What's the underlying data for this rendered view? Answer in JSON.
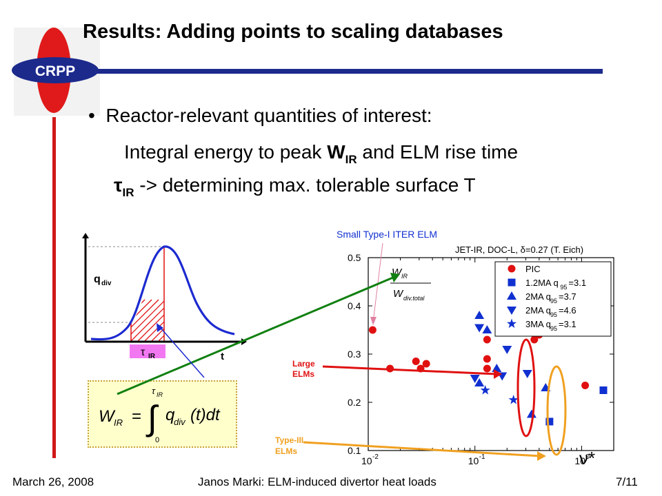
{
  "slide": {
    "title": "Results: Adding points to scaling databases",
    "logo_text": "CRPP",
    "bullet": "Reactor-relevant quantities of interest:",
    "line2_pre": "Integral energy to peak ",
    "line2_bold": "W",
    "line2_sub": "IR",
    "line2_post": " and ELM rise time",
    "line3_tau": "τ",
    "line3_sub": "IR",
    "line3_post": " -> determining max. tolerable surface T"
  },
  "sketch": {
    "ylabel": "q",
    "ylabel_sub": "div",
    "xlabel": "t",
    "tau_label": "τ",
    "tau_sub": "IR",
    "formula": {
      "lhs": "W",
      "lhs_sub": "IR",
      "eq": "=",
      "upper": "τ",
      "upper_sub": "IR",
      "lower": "0",
      "integrand": "q",
      "integrand_sub": "div",
      "tail": "(t)dt"
    }
  },
  "annotations": {
    "small_type1": "Small Type-I ITER ELM",
    "large_elms_1": "Large",
    "large_elms_2": "ELMs",
    "type3_1": "Type-III",
    "type3_2": "ELMs",
    "ratio_num": "W",
    "ratio_num_sub": "IR",
    "ratio_den": "W",
    "ratio_den_sub": "div.total",
    "nu_star": "ν*"
  },
  "chart_data": {
    "type": "scatter",
    "title": "JET-IR, DOC-L, δ=0.27 (T. Eich)",
    "xlabel": "ν*",
    "ylabel": "",
    "xscale": "log",
    "xlim": [
      0.01,
      2.0
    ],
    "ylim": [
      0.1,
      0.5
    ],
    "yticks": [
      "0.1",
      "0.2",
      "0.3",
      "0.4",
      "0.5"
    ],
    "xticks": [
      {
        "base": "10",
        "exp": "-2"
      },
      {
        "base": "10",
        "exp": "-1"
      },
      {
        "base": "10",
        "exp": "0"
      }
    ],
    "series": [
      {
        "name": "PIC",
        "marker": "circle",
        "color": "#e01010",
        "points": [
          [
            0.011,
            0.35
          ],
          [
            0.016,
            0.27
          ],
          [
            0.028,
            0.285
          ],
          [
            0.031,
            0.27
          ],
          [
            0.035,
            0.28
          ],
          [
            0.13,
            0.33
          ],
          [
            0.13,
            0.29
          ],
          [
            0.13,
            0.27
          ],
          [
            0.36,
            0.33
          ],
          [
            0.4,
            0.34
          ],
          [
            1.08,
            0.235
          ]
        ]
      },
      {
        "name": "1.2MA q95=3.1",
        "marker": "square",
        "color": "#1030d0",
        "points": [
          [
            0.5,
            0.16
          ],
          [
            1.6,
            0.225
          ]
        ]
      },
      {
        "name": "2MA q95=3.7",
        "marker": "triangle-up",
        "color": "#1030d0",
        "points": [
          [
            0.11,
            0.38
          ],
          [
            0.13,
            0.35
          ],
          [
            0.11,
            0.24
          ],
          [
            0.34,
            0.175
          ],
          [
            0.46,
            0.23
          ],
          [
            0.16,
            0.27
          ]
        ]
      },
      {
        "name": "2MA q95=4.6",
        "marker": "triangle-down",
        "color": "#1030d0",
        "points": [
          [
            0.11,
            0.355
          ],
          [
            0.2,
            0.31
          ],
          [
            0.1,
            0.25
          ],
          [
            0.18,
            0.255
          ],
          [
            0.31,
            0.26
          ]
        ]
      },
      {
        "name": "3MA q95=3.1",
        "marker": "star",
        "color": "#1030d0",
        "points": [
          [
            0.125,
            0.225
          ],
          [
            0.23,
            0.205
          ]
        ]
      }
    ],
    "legend_labels": [
      {
        "text": "PIC",
        "q": ""
      },
      {
        "text": "1.2MA q",
        "q": "95",
        "tail": "=3.1"
      },
      {
        "text": "2MA q",
        "q": "95",
        "tail": "=3.7"
      },
      {
        "text": "2MA q",
        "q": "95",
        "tail": "=4.6"
      },
      {
        "text": "3MA q",
        "q": "95",
        "tail": "=3.1"
      }
    ],
    "legend_placement": "top-right",
    "grid": false
  },
  "footer": {
    "date": "March 26, 2008",
    "center": "Janos Marki: ELM-induced divertor heat loads",
    "page": "7/11"
  },
  "colors": {
    "accent": "#1c2a8c",
    "red": "#e01010",
    "blue": "#1030d0",
    "green": "#108010",
    "orange": "#f0a020",
    "sketch_blue": "#1c2ad0"
  }
}
